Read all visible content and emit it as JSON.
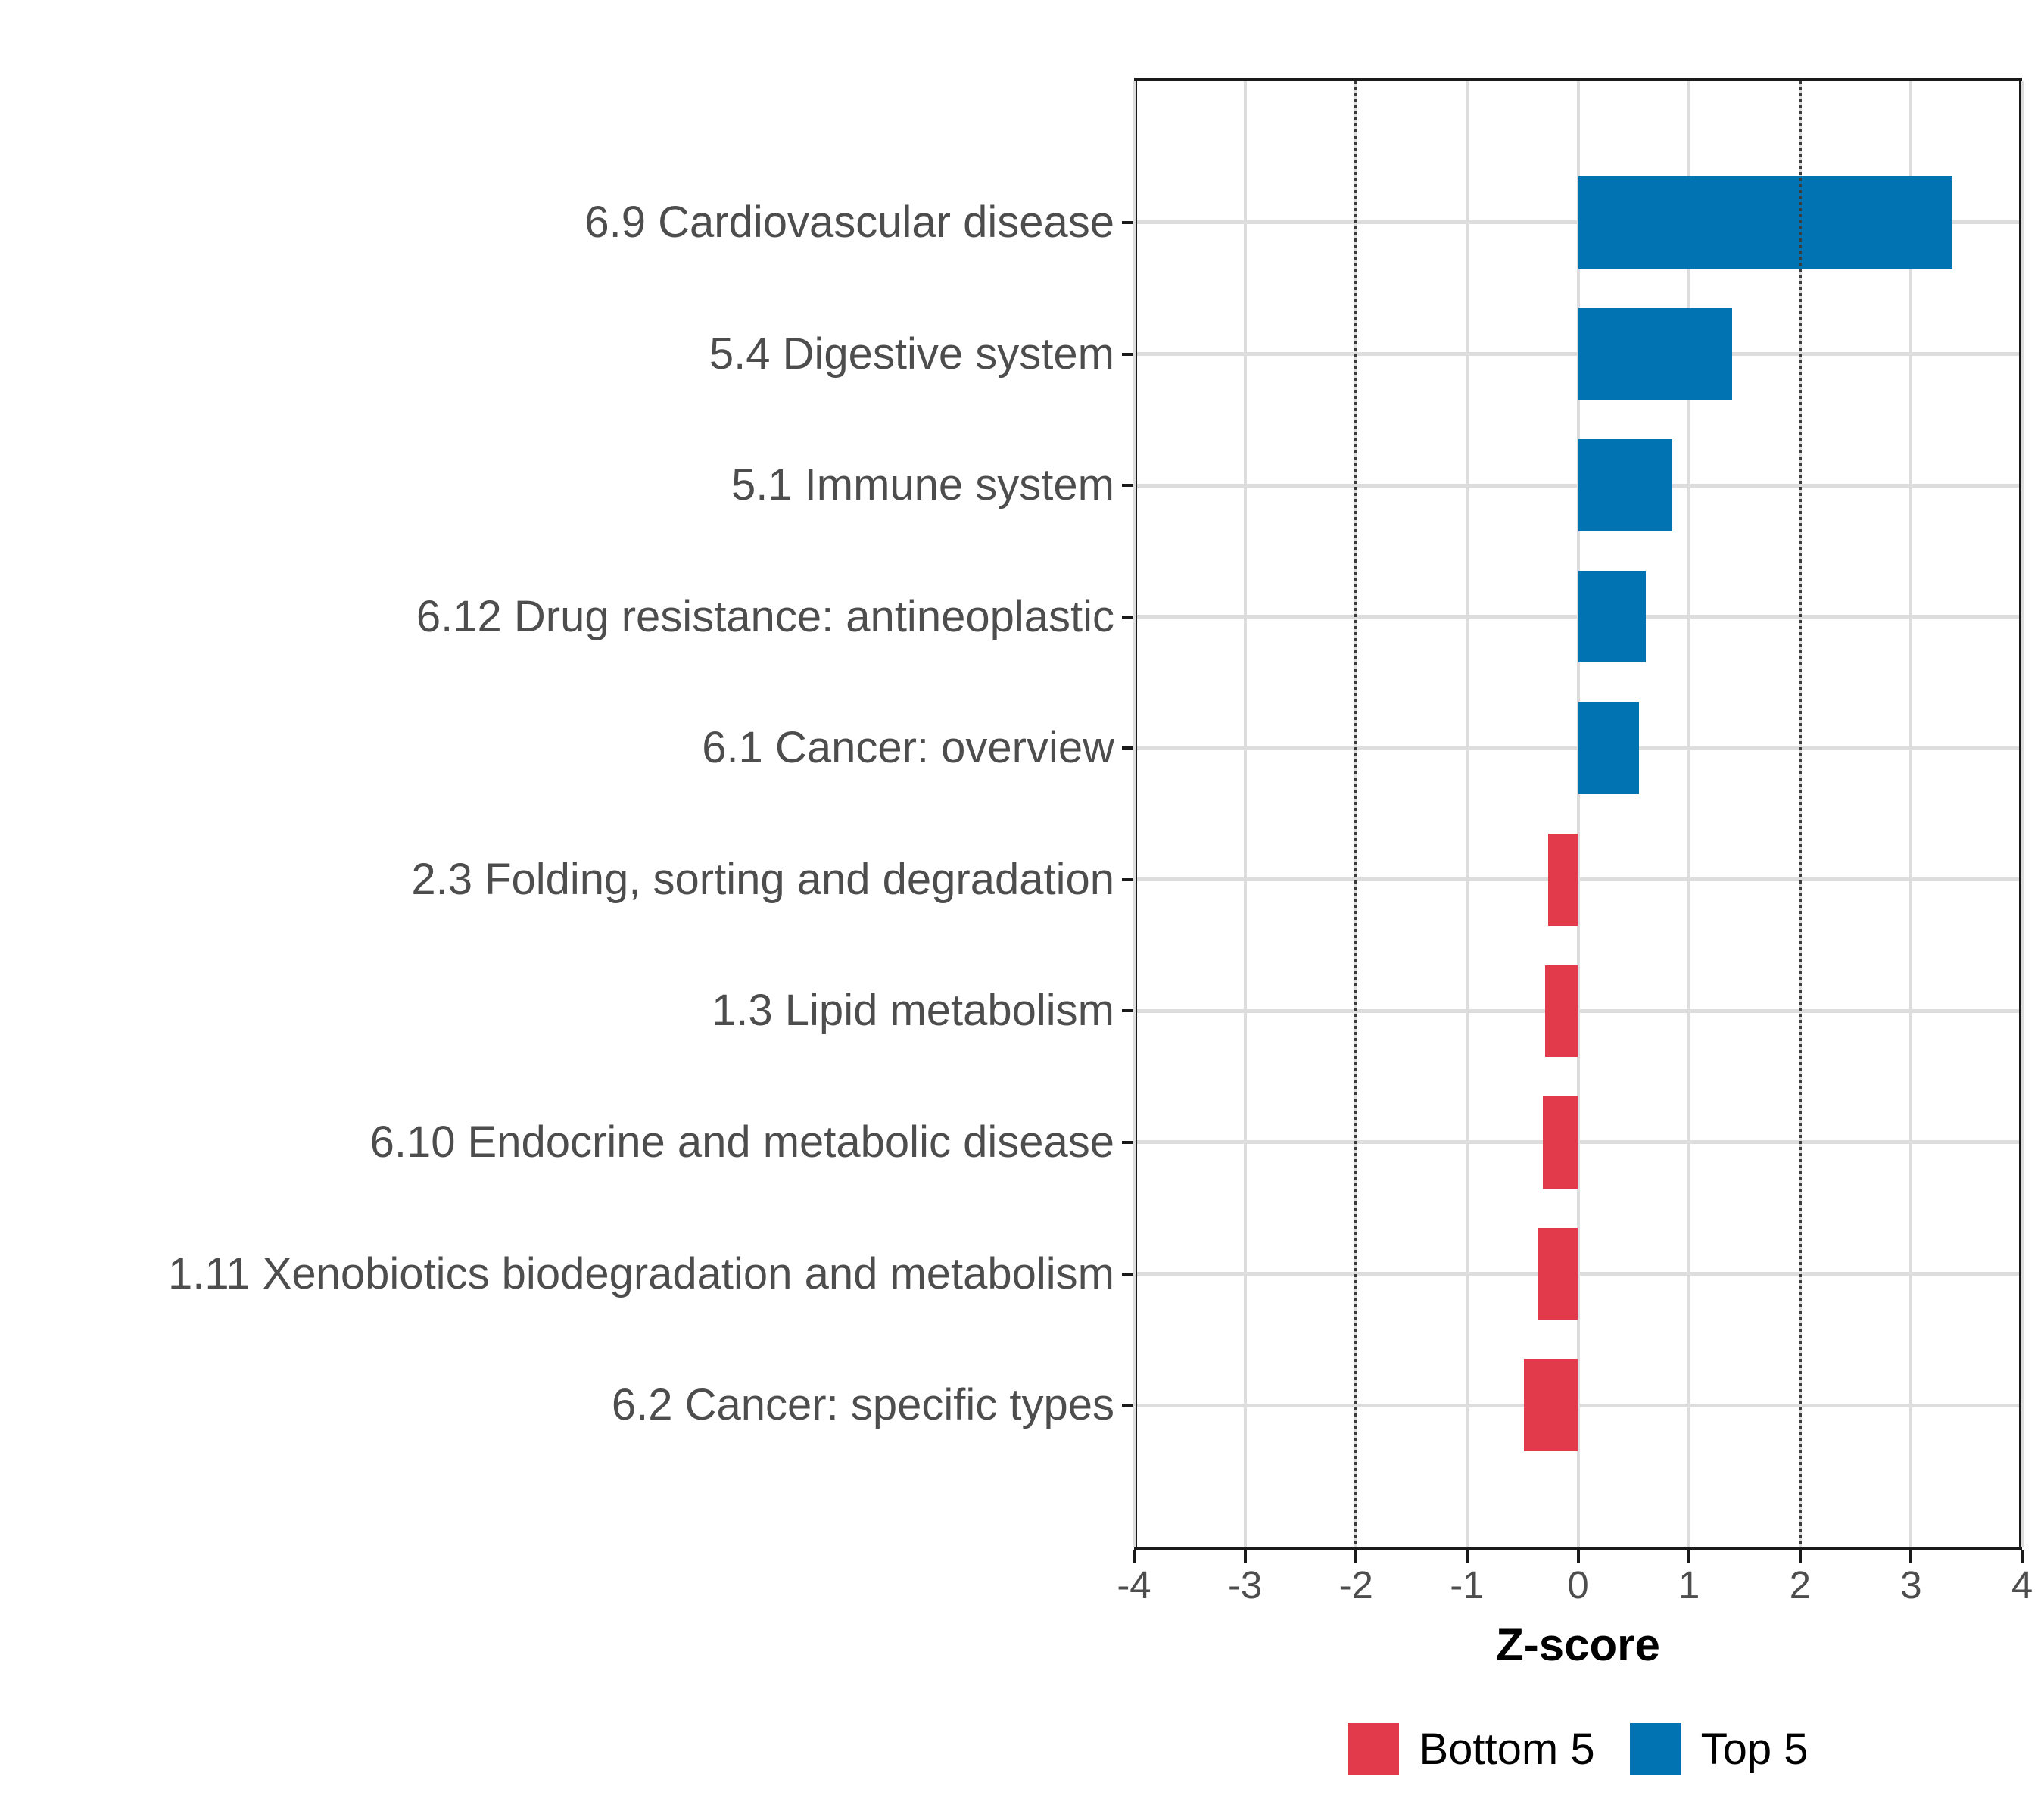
{
  "figure": {
    "background": "#FFFFFF"
  },
  "chart_data": {
    "type": "bar",
    "orientation": "horizontal",
    "title": "",
    "xlabel": "Z-score",
    "ylabel": "",
    "xlim": [
      -4,
      4
    ],
    "xticks": [
      -4,
      -3,
      -2,
      -1,
      0,
      1,
      2,
      3,
      4
    ],
    "grid": {
      "show": true,
      "color": "#DDDDDD"
    },
    "reference_lines": {
      "values": [
        -2,
        2
      ],
      "style": "dotted",
      "color": "#3C3C3C"
    },
    "bar_width_fraction": 0.7,
    "categories": [
      "6.9 Cardiovascular disease",
      "5.4 Digestive system",
      "5.1 Immune system",
      "6.12 Drug resistance: antineoplastic",
      "6.1 Cancer: overview",
      "2.3 Folding, sorting and degradation",
      "1.3 Lipid metabolism",
      "6.10 Endocrine and metabolic disease",
      "1.11 Xenobiotics biodegradation and metabolism",
      "6.2 Cancer: specific types"
    ],
    "values": [
      3.37,
      1.39,
      0.85,
      0.61,
      0.55,
      -0.27,
      -0.3,
      -0.32,
      -0.36,
      -0.49
    ],
    "groups": [
      "Top 5",
      "Top 5",
      "Top 5",
      "Top 5",
      "Top 5",
      "Bottom 5",
      "Bottom 5",
      "Bottom 5",
      "Bottom 5",
      "Bottom 5"
    ],
    "colors": {
      "Top 5": "#0173B2",
      "Bottom 5": "#E2394B"
    },
    "legend": {
      "position": "bottom",
      "entries": [
        {
          "label": "Bottom 5",
          "color": "#E2394B"
        },
        {
          "label": "Top 5",
          "color": "#0173B2"
        }
      ]
    },
    "axis_text_color": "#4D4D4D",
    "axis_line_color": "#1A1A1A"
  }
}
